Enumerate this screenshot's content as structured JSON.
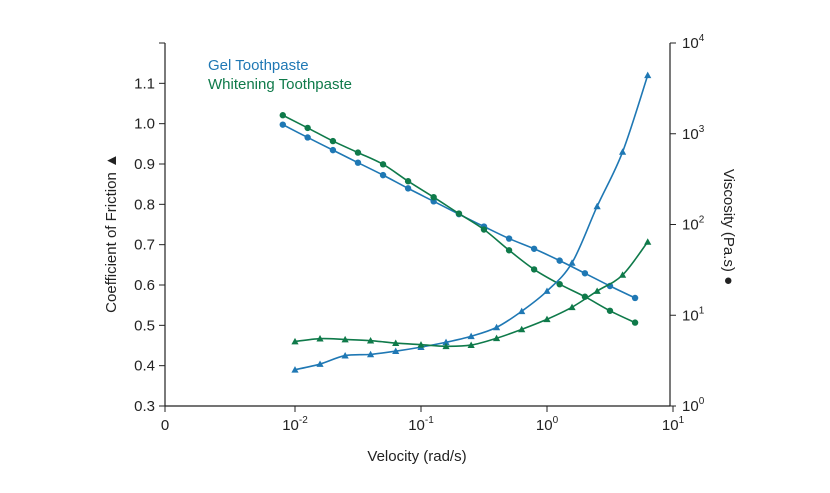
{
  "chart_data": {
    "type": "line",
    "xlabel": "Velocity (rad/s)",
    "ylabel_left": "Coefficient of Friction",
    "ylabel_left_marker": "▲",
    "ylabel_right": "Viscosity (Pa.s)",
    "ylabel_right_marker": "●",
    "x_scale": "log",
    "x_ticks": [
      {
        "value": 0,
        "base": "0",
        "exp": ""
      },
      {
        "value": 0.01,
        "base": "10",
        "exp": "-2"
      },
      {
        "value": 0.1,
        "base": "10",
        "exp": "-1"
      },
      {
        "value": 1,
        "base": "10",
        "exp": "0"
      },
      {
        "value": 10,
        "base": "10",
        "exp": "1"
      }
    ],
    "y_left_range": [
      0.3,
      1.2
    ],
    "y_left_ticks": [
      "0.3",
      "0.4",
      "0.5",
      "0.6",
      "0.7",
      "0.8",
      "0.9",
      "1.0",
      "1.1"
    ],
    "y_right_scale": "log",
    "y_right_range": [
      1,
      10000
    ],
    "y_right_ticks": [
      {
        "value": 1,
        "base": "10",
        "exp": "0"
      },
      {
        "value": 10,
        "base": "10",
        "exp": "1"
      },
      {
        "value": 100,
        "base": "10",
        "exp": "2"
      },
      {
        "value": 1000,
        "base": "10",
        "exp": "3"
      },
      {
        "value": 10000,
        "base": "10",
        "exp": "4"
      }
    ],
    "legend": [
      {
        "name": "Gel Toothpaste",
        "color": "#1f78b4"
      },
      {
        "name": "Whitening Toothpaste",
        "color": "#0f7a4a"
      }
    ],
    "legend_position": "top-left",
    "series": [
      {
        "name": "Gel Toothpaste",
        "quantity": "viscosity",
        "axis": "right",
        "marker": "circle",
        "color": "#1f78b4",
        "x": [
          0.008,
          0.0126,
          0.02,
          0.0316,
          0.05,
          0.079,
          0.126,
          0.2,
          0.316,
          0.5,
          0.79,
          1.26,
          2.0,
          3.16,
          5.0
        ],
        "y": [
          1260,
          910,
          660,
          480,
          350,
          250,
          180,
          130,
          95,
          70,
          54,
          40,
          29,
          21,
          15.5
        ]
      },
      {
        "name": "Whitening Toothpaste",
        "quantity": "viscosity",
        "axis": "right",
        "marker": "circle",
        "color": "#0f7a4a",
        "x": [
          0.008,
          0.0126,
          0.02,
          0.0316,
          0.05,
          0.079,
          0.126,
          0.2,
          0.316,
          0.5,
          0.79,
          1.26,
          2.0,
          3.16,
          5.0
        ],
        "y": [
          1600,
          1160,
          830,
          620,
          460,
          300,
          200,
          132,
          88,
          52,
          32,
          22,
          16,
          11.2,
          8.3
        ]
      },
      {
        "name": "Gel Toothpaste",
        "quantity": "friction",
        "axis": "left",
        "marker": "triangle",
        "color": "#1f78b4",
        "x": [
          0.01,
          0.0158,
          0.025,
          0.0398,
          0.063,
          0.1,
          0.158,
          0.25,
          0.398,
          0.63,
          1.0,
          1.58,
          2.5,
          3.98,
          6.3
        ],
        "y": [
          0.39,
          0.404,
          0.425,
          0.428,
          0.436,
          0.446,
          0.458,
          0.473,
          0.495,
          0.535,
          0.585,
          0.655,
          0.795,
          0.93,
          1.12
        ]
      },
      {
        "name": "Whitening Toothpaste",
        "quantity": "friction",
        "axis": "left",
        "marker": "triangle",
        "color": "#0f7a4a",
        "x": [
          0.01,
          0.0158,
          0.025,
          0.0398,
          0.063,
          0.1,
          0.158,
          0.25,
          0.398,
          0.63,
          1.0,
          1.58,
          2.5,
          3.98,
          6.3
        ],
        "y": [
          0.46,
          0.467,
          0.465,
          0.462,
          0.456,
          0.452,
          0.448,
          0.451,
          0.468,
          0.49,
          0.515,
          0.545,
          0.585,
          0.625,
          0.707
        ]
      }
    ]
  }
}
